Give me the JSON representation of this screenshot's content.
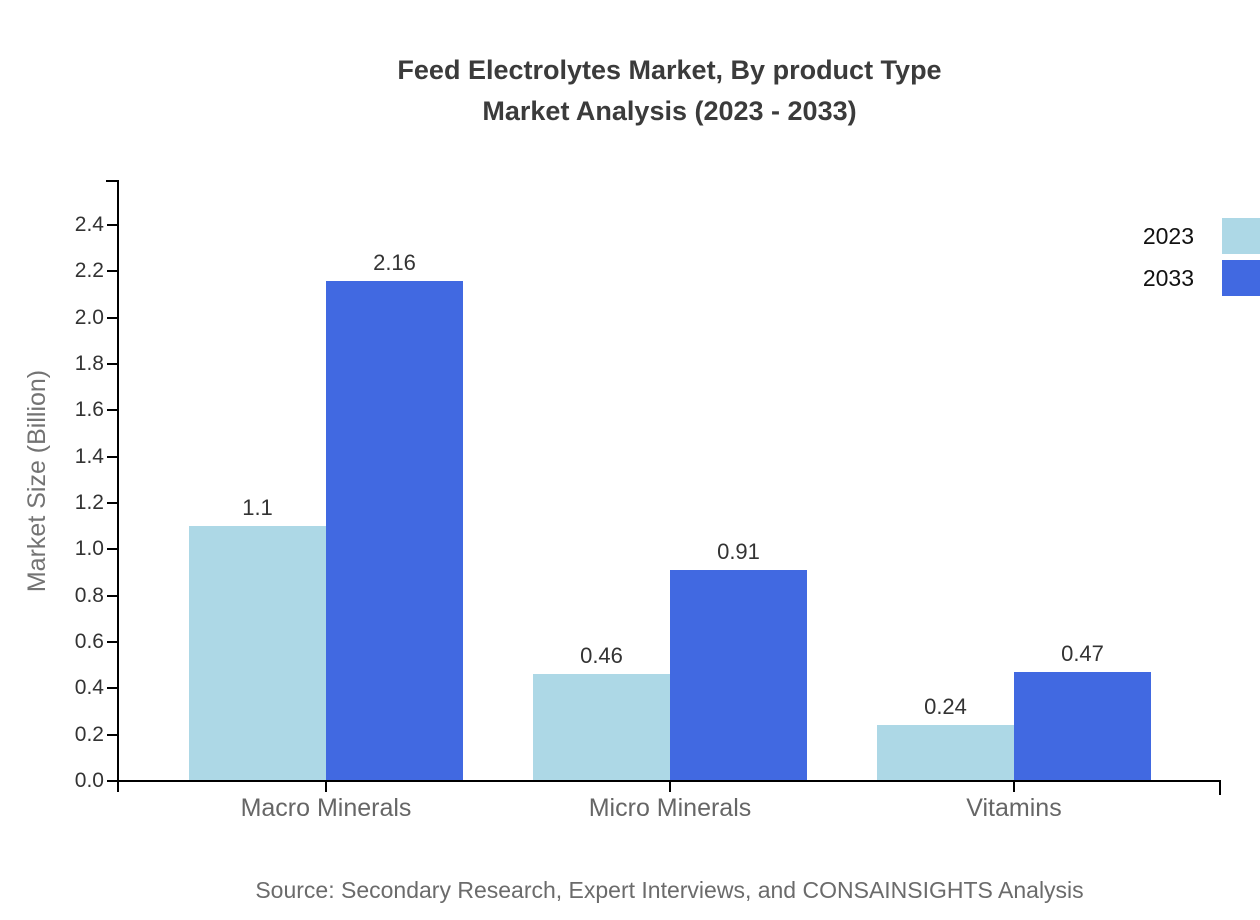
{
  "title": {
    "line1": "Feed Electrolytes Market, By product Type",
    "line2": "Market Analysis (2023 - 2033)"
  },
  "source": "Source: Secondary Research, Expert Interviews, and CONSAINSIGHTS Analysis",
  "chart_data": {
    "type": "bar",
    "title": "Feed Electrolytes Market, By product Type Market Analysis (2023 - 2033)",
    "categories": [
      "Macro Minerals",
      "Micro Minerals",
      "Vitamins"
    ],
    "series": [
      {
        "name": "2023",
        "color": "#ADD8E6",
        "values": [
          1.1,
          0.46,
          0.24
        ]
      },
      {
        "name": "2033",
        "color": "#4169E1",
        "values": [
          2.16,
          0.91,
          0.47
        ]
      }
    ],
    "value_labels": [
      [
        "1.1",
        "0.46",
        "0.24"
      ],
      [
        "2.16",
        "0.91",
        "0.47"
      ]
    ],
    "xlabel": "",
    "ylabel": "Market Size (Billion)",
    "ylim": [
      0.0,
      2.5
    ],
    "ytick_step": 0.2,
    "ytick_labels": [
      "0.0",
      "0.2",
      "0.4",
      "0.6",
      "0.8",
      "1.0",
      "1.2",
      "1.4",
      "1.6",
      "1.8",
      "2.0",
      "2.2",
      "2.4"
    ],
    "grid": false,
    "legend_position": "top-right"
  }
}
